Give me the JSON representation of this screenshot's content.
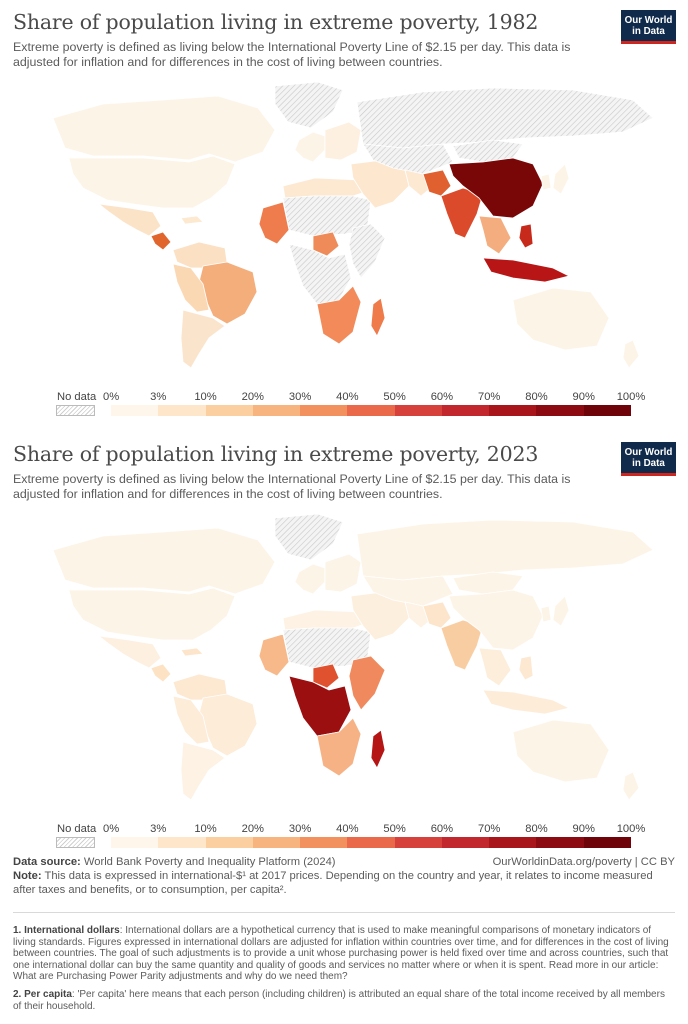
{
  "panels": [
    {
      "title": "Share of population living in extreme poverty, 1982",
      "subtitle": "Extreme poverty is defined as living below the International Poverty Line of $2.15 per day. This data is adjusted for inflation and for differences in the cost of living between countries.",
      "regions": {
        "canada": "#fdf4e8",
        "usa": "#fdf4e8",
        "greenland": "nodata",
        "mexico": "#fbe3c8",
        "central_america": "#e0662d",
        "caribbean": "#fde8d0",
        "northern_south_america": "#fbe0c4",
        "brazil": "#f4ae7b",
        "andes": "#fbd8b4",
        "southern_cone": "#fbe4cc",
        "western_europe": "#fdf4e8",
        "eastern_europe": "#fdf0e0",
        "russia": "nodata",
        "north_africa": "#fde8d2",
        "sahara": "nodata",
        "west_africa_coast": "#ef7c4c",
        "nigeria": "#ef8b58",
        "central_africa": "nodata",
        "east_africa": "nodata",
        "southern_africa": "#f28a5a",
        "madagascar": "#ef7a4a",
        "middle_east": "#fde7cf",
        "central_asia": "nodata",
        "iran": "#fde8d2",
        "india": "#dc4a2c",
        "pakistan": "#e0602f",
        "china": "#7a0707",
        "mongolia": "nodata",
        "southeast_asia": "#f4ad7f",
        "indonesia": "#b81616",
        "philippines": "#c72a1a",
        "japan": "#fdf4e8",
        "korea": "#fdf4e8",
        "australia": "#fdf4e8",
        "new_zealand": "#fdf4e8"
      }
    },
    {
      "title": "Share of population living in extreme poverty, 2023",
      "subtitle": "Extreme poverty is defined as living below the International Poverty Line of $2.15 per day. This data is adjusted for inflation and for differences in the cost of living between countries.",
      "regions": {
        "canada": "#fdf4e8",
        "usa": "#fdf4e8",
        "greenland": "nodata",
        "mexico": "#fdf0e0",
        "central_america": "#fde2c4",
        "caribbean": "#fde5cb",
        "northern_south_america": "#fde8d2",
        "brazil": "#fdecd8",
        "andes": "#fdecd8",
        "southern_cone": "#fdf2e4",
        "western_europe": "#fdf4e8",
        "eastern_europe": "#fdf4e8",
        "russia": "#fdf4e8",
        "north_africa": "#fdf2e4",
        "sahara": "nodata",
        "west_africa_coast": "#f7b98a",
        "nigeria": "#e0512f",
        "central_africa": "#9c0f10",
        "east_africa": "#f08a5e",
        "southern_africa": "#f6b284",
        "madagascar": "#b51515",
        "middle_east": "#fdefdd",
        "central_asia": "#fdf4e8",
        "iran": "#fdf2e4",
        "india": "#f9cda2",
        "pakistan": "#fde5cb",
        "china": "#fdf4e8",
        "mongolia": "#fdf4e8",
        "southeast_asia": "#fdeedb",
        "indonesia": "#fdecd8",
        "philippines": "#fde8d2",
        "japan": "#fdf4e8",
        "korea": "#fdf4e8",
        "australia": "#fdf4e8",
        "new_zealand": "#fdf4e8"
      }
    }
  ],
  "logo": {
    "line1": "Our World",
    "line2": "in Data",
    "bg": "#102a4c",
    "accent": "#ce261e"
  },
  "legend": {
    "nodata_label": "No data",
    "ticks": [
      "0%",
      "3%",
      "10%",
      "20%",
      "30%",
      "40%",
      "50%",
      "60%",
      "70%",
      "80%",
      "90%",
      "100%"
    ],
    "colors": [
      "#fef6ea",
      "#fde6c9",
      "#fbcf9f",
      "#f8b47e",
      "#f3915e",
      "#e9694a",
      "#d6413b",
      "#c1272d",
      "#a8151b",
      "#8c0a11",
      "#6e0309"
    ],
    "nodata_color": "hatched-grey"
  },
  "source": {
    "label": "Data source:",
    "text": "World Bank Poverty and Inequality Platform (2024)",
    "right": "OurWorldinData.org/poverty | CC BY",
    "note_label": "Note:",
    "note_text": "This data is expressed in international-$¹ at 2017 prices. Depending on the country and year, it relates to income measured after taxes and benefits, or to consumption, per capita²."
  },
  "footnotes": [
    {
      "label": "1. International dollars",
      "text": ": International dollars are a hypothetical currency that is used to make meaningful comparisons of monetary indicators of living standards. Figures expressed in international dollars are adjusted for inflation within countries over time, and for differences in the cost of living between countries. The goal of such adjustments is to provide a unit whose purchasing power is held fixed over time and across countries, such that one international dollar can buy the same quantity and quality of goods and services no matter where or when it is spent. Read more in our article: What are Purchasing Power Parity adjustments and why do we need them?"
    },
    {
      "label": "2. Per capita",
      "text": ": 'Per capita' here means that each person (including children) is attributed an equal share of the total income received by all members of their household."
    }
  ]
}
